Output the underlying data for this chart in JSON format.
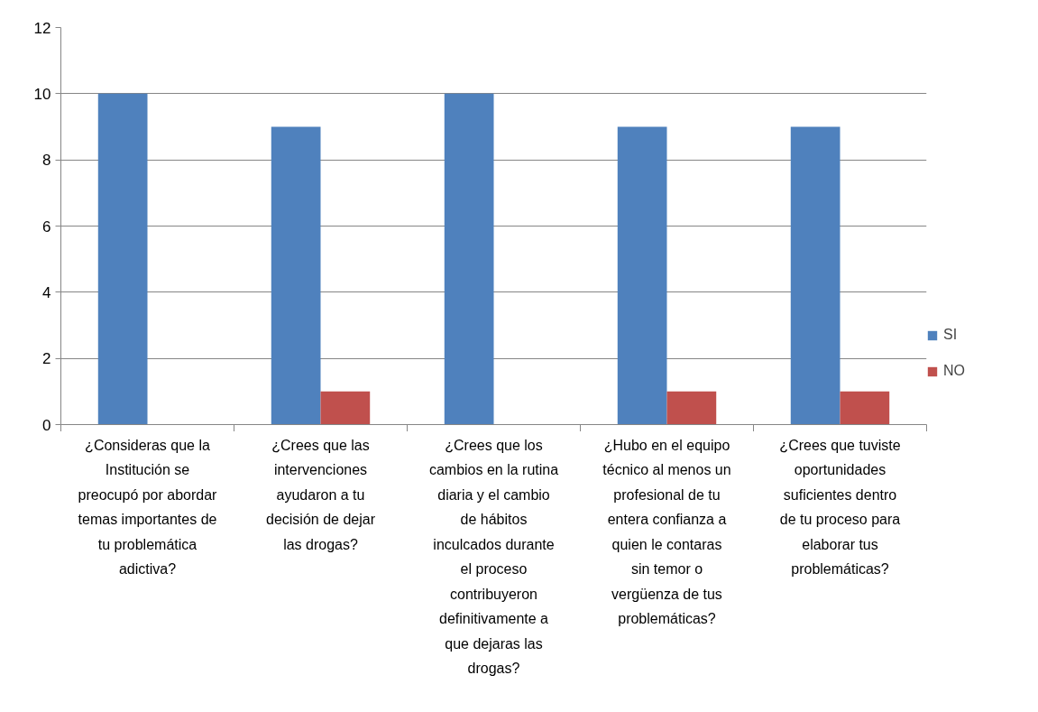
{
  "chart_data": {
    "type": "bar",
    "categories": [
      "¿Consideras que la Institución se preocupó por abordar temas importantes de tu problemática adictiva?",
      "¿Crees que las intervenciones ayudaron a tu decisión de dejar las drogas?",
      "¿Crees que los cambios en la rutina diaria y el cambio de hábitos inculcados durante el proceso contribuyeron definitivamente a que dejaras las drogas?",
      "¿Hubo en el equipo técnico al menos un profesional de tu entera confianza a quien le contaras sin temor o vergüenza de tus problemáticas?",
      "¿Crees que tuviste oportunidades suficientes dentro de tu proceso para elaborar tus problemáticas?"
    ],
    "series": [
      {
        "name": "SI",
        "color": "#4f81bd",
        "values": [
          10,
          9,
          10,
          9,
          9
        ]
      },
      {
        "name": "NO",
        "color": "#c0504d",
        "values": [
          0,
          1,
          0,
          1,
          1
        ]
      }
    ],
    "ylim": [
      0,
      12
    ],
    "yticks": [
      0,
      2,
      4,
      6,
      8,
      10,
      12
    ],
    "grid": "y",
    "legend": "right"
  }
}
